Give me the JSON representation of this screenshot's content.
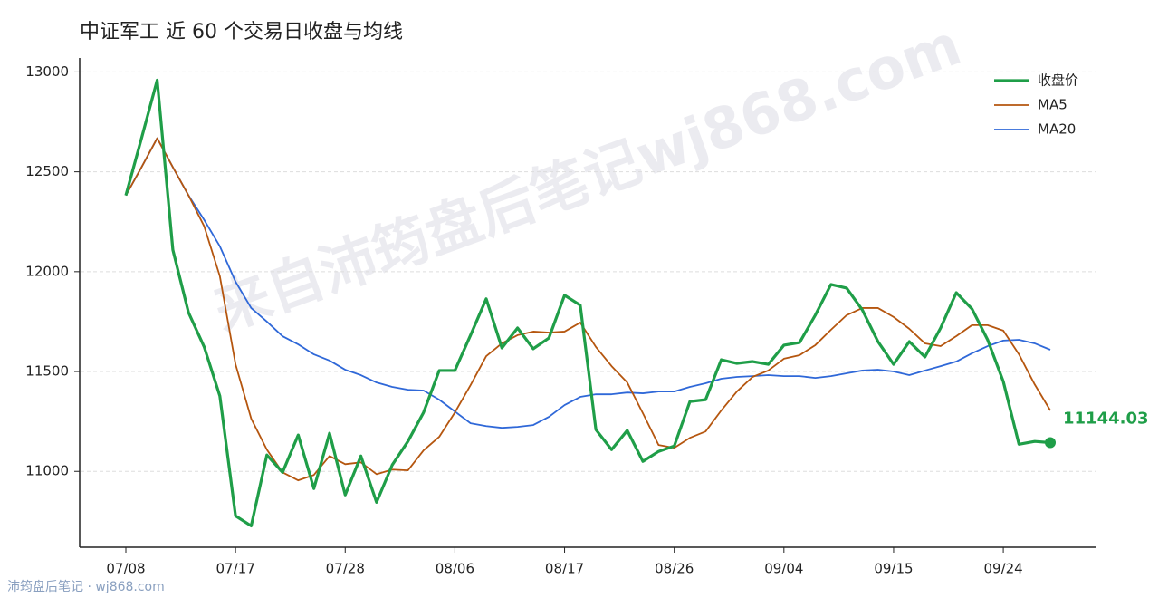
{
  "chart_data": {
    "type": "line",
    "title": "中证军工 近 60 个交易日收盘与均线",
    "categories": [
      "07/08",
      null,
      null,
      null,
      null,
      null,
      null,
      "07/17",
      null,
      null,
      null,
      null,
      null,
      null,
      "07/28",
      null,
      null,
      null,
      null,
      null,
      null,
      "08/06",
      null,
      null,
      null,
      null,
      null,
      null,
      "08/17",
      null,
      null,
      null,
      null,
      null,
      null,
      "08/26",
      null,
      null,
      null,
      null,
      null,
      null,
      "09/04",
      null,
      null,
      null,
      null,
      null,
      null,
      "09/15",
      null,
      null,
      null,
      null,
      null,
      null,
      "09/24",
      null,
      null,
      null
    ],
    "series": [
      {
        "name": "收盘价",
        "color": "#1f9e48",
        "values": [
          12382,
          12668,
          12959,
          12109,
          11795,
          11623,
          11377,
          10777,
          10727,
          11082,
          10995,
          11182,
          10914,
          11191,
          10882,
          11077,
          10845,
          11032,
          11150,
          11295,
          11505,
          11505,
          11682,
          11864,
          11618,
          11718,
          11614,
          11668,
          11882,
          11832,
          11209,
          11109,
          11205,
          11050,
          11100,
          11127,
          11350,
          11359,
          11559,
          11541,
          11550,
          11536,
          11632,
          11645,
          11782,
          11936,
          11918,
          11809,
          11650,
          11536,
          11650,
          11573,
          11718,
          11895,
          11814,
          11659,
          11450,
          11136,
          11150,
          11144.03
        ]
      },
      {
        "name": "MA5",
        "color": "#b5560f",
        "values": [
          12382,
          12523,
          12668,
          12523,
          12382,
          12227,
          11977,
          11536,
          11264,
          11109,
          10995,
          10955,
          10982,
          11077,
          11036,
          11045,
          10986,
          11009,
          11005,
          11105,
          11173,
          11295,
          11432,
          11577,
          11641,
          11682,
          11700,
          11695,
          11700,
          11745,
          11623,
          11527,
          11445,
          11291,
          11132,
          11118,
          11168,
          11200,
          11305,
          11400,
          11473,
          11505,
          11564,
          11582,
          11632,
          11709,
          11782,
          11818,
          11818,
          11773,
          11714,
          11641,
          11627,
          11677,
          11732,
          11732,
          11705,
          11586,
          11436,
          11305
        ]
      },
      {
        "name": "MA20",
        "color": "#2f68d8",
        "values": [
          12382,
          12523,
          12668,
          12523,
          12382,
          12259,
          12127,
          11950,
          11818,
          11750,
          11677,
          11636,
          11586,
          11555,
          11509,
          11482,
          11445,
          11423,
          11409,
          11405,
          11359,
          11300,
          11241,
          11227,
          11218,
          11223,
          11232,
          11273,
          11332,
          11373,
          11386,
          11386,
          11395,
          11391,
          11400,
          11400,
          11423,
          11441,
          11464,
          11473,
          11477,
          11482,
          11477,
          11477,
          11468,
          11477,
          11491,
          11505,
          11509,
          11500,
          11482,
          11505,
          11527,
          11550,
          11591,
          11627,
          11655,
          11659,
          11641,
          11609
        ]
      }
    ],
    "ylim": [
      10620,
      13070
    ],
    "yticks": [
      11000,
      11500,
      12000,
      12500,
      13000
    ],
    "grid": true,
    "legend": "upper right",
    "annotation": "11144.03",
    "watermark": "来自沛筠盘后笔记wj868.com",
    "footer": "沛筠盘后笔记 · wj868.com"
  }
}
